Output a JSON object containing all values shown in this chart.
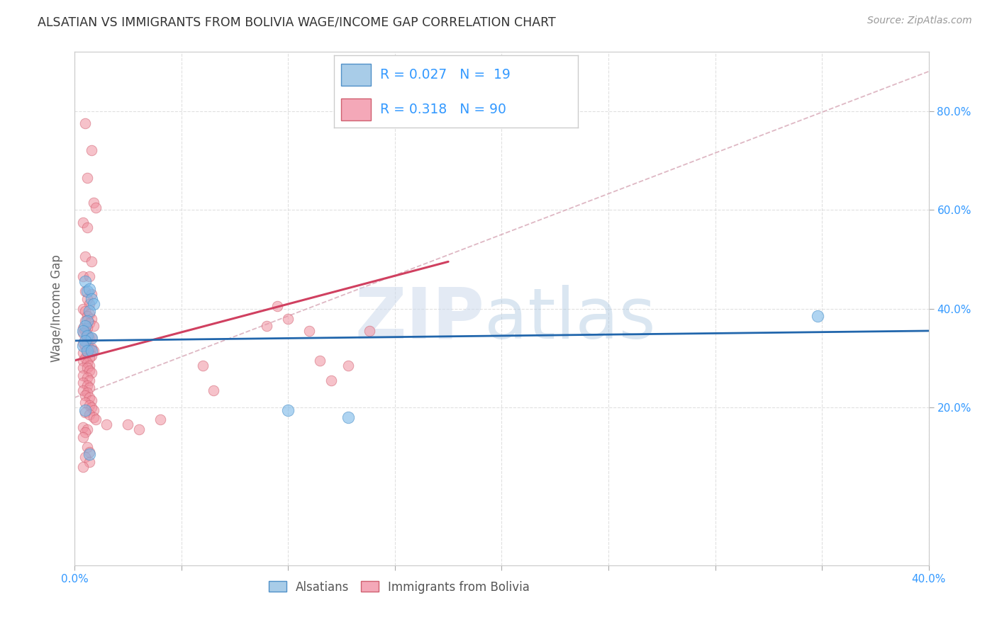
{
  "title": "ALSATIAN VS IMMIGRANTS FROM BOLIVIA WAGE/INCOME GAP CORRELATION CHART",
  "source": "Source: ZipAtlas.com",
  "ylabel": "Wage/Income Gap",
  "xlim": [
    0.0,
    0.4
  ],
  "ylim": [
    -0.12,
    0.92
  ],
  "x_tick_positions": [
    0.0,
    0.05,
    0.1,
    0.15,
    0.2,
    0.25,
    0.3,
    0.35,
    0.4
  ],
  "x_tick_labels": [
    "0.0%",
    "",
    "",
    "",
    "",
    "",
    "",
    "",
    "40.0%"
  ],
  "y_tick_positions": [
    0.2,
    0.4,
    0.6,
    0.8
  ],
  "y_tick_labels": [
    "20.0%",
    "40.0%",
    "60.0%",
    "80.0%"
  ],
  "background_color": "#ffffff",
  "grid_color": "#dddddd",
  "alsatian_color": "#7ab8e8",
  "alsatian_edge": "#4a90c8",
  "bolivia_color": "#f090a0",
  "bolivia_edge": "#d06070",
  "alsatian_line_color": "#2166ac",
  "bolivia_line_color": "#d04060",
  "diagonal_color": "#d4a0b0",
  "alsatian_line": [
    0.0,
    0.4,
    0.335,
    0.355
  ],
  "bolivia_line": [
    0.0,
    0.175,
    0.295,
    0.495
  ],
  "diagonal_line": [
    0.0,
    0.4,
    0.22,
    0.88
  ],
  "alsatian_points": [
    [
      0.005,
      0.455
    ],
    [
      0.006,
      0.435
    ],
    [
      0.007,
      0.44
    ],
    [
      0.008,
      0.42
    ],
    [
      0.009,
      0.41
    ],
    [
      0.007,
      0.395
    ],
    [
      0.006,
      0.375
    ],
    [
      0.005,
      0.365
    ],
    [
      0.004,
      0.355
    ],
    [
      0.006,
      0.345
    ],
    [
      0.008,
      0.34
    ],
    [
      0.005,
      0.335
    ],
    [
      0.004,
      0.325
    ],
    [
      0.006,
      0.315
    ],
    [
      0.008,
      0.315
    ],
    [
      0.005,
      0.195
    ],
    [
      0.007,
      0.105
    ],
    [
      0.1,
      0.195
    ],
    [
      0.128,
      0.18
    ],
    [
      0.348,
      0.385
    ]
  ],
  "bolivia_points": [
    [
      0.005,
      0.775
    ],
    [
      0.008,
      0.72
    ],
    [
      0.006,
      0.665
    ],
    [
      0.009,
      0.615
    ],
    [
      0.01,
      0.605
    ],
    [
      0.004,
      0.575
    ],
    [
      0.006,
      0.565
    ],
    [
      0.005,
      0.505
    ],
    [
      0.008,
      0.495
    ],
    [
      0.004,
      0.465
    ],
    [
      0.007,
      0.465
    ],
    [
      0.005,
      0.435
    ],
    [
      0.008,
      0.43
    ],
    [
      0.006,
      0.42
    ],
    [
      0.007,
      0.41
    ],
    [
      0.004,
      0.4
    ],
    [
      0.005,
      0.395
    ],
    [
      0.007,
      0.39
    ],
    [
      0.006,
      0.385
    ],
    [
      0.008,
      0.38
    ],
    [
      0.005,
      0.375
    ],
    [
      0.007,
      0.37
    ],
    [
      0.009,
      0.365
    ],
    [
      0.004,
      0.36
    ],
    [
      0.006,
      0.36
    ],
    [
      0.005,
      0.355
    ],
    [
      0.004,
      0.35
    ],
    [
      0.006,
      0.345
    ],
    [
      0.007,
      0.34
    ],
    [
      0.008,
      0.34
    ],
    [
      0.004,
      0.33
    ],
    [
      0.006,
      0.33
    ],
    [
      0.005,
      0.325
    ],
    [
      0.007,
      0.32
    ],
    [
      0.008,
      0.32
    ],
    [
      0.009,
      0.315
    ],
    [
      0.004,
      0.31
    ],
    [
      0.006,
      0.31
    ],
    [
      0.008,
      0.305
    ],
    [
      0.005,
      0.3
    ],
    [
      0.007,
      0.3
    ],
    [
      0.004,
      0.295
    ],
    [
      0.006,
      0.29
    ],
    [
      0.007,
      0.285
    ],
    [
      0.004,
      0.28
    ],
    [
      0.006,
      0.28
    ],
    [
      0.007,
      0.275
    ],
    [
      0.008,
      0.27
    ],
    [
      0.004,
      0.265
    ],
    [
      0.006,
      0.26
    ],
    [
      0.007,
      0.255
    ],
    [
      0.004,
      0.25
    ],
    [
      0.006,
      0.245
    ],
    [
      0.007,
      0.24
    ],
    [
      0.004,
      0.235
    ],
    [
      0.006,
      0.23
    ],
    [
      0.005,
      0.225
    ],
    [
      0.007,
      0.22
    ],
    [
      0.008,
      0.215
    ],
    [
      0.005,
      0.21
    ],
    [
      0.007,
      0.205
    ],
    [
      0.008,
      0.2
    ],
    [
      0.009,
      0.195
    ],
    [
      0.005,
      0.19
    ],
    [
      0.007,
      0.185
    ],
    [
      0.009,
      0.18
    ],
    [
      0.01,
      0.175
    ],
    [
      0.015,
      0.165
    ],
    [
      0.004,
      0.16
    ],
    [
      0.006,
      0.155
    ],
    [
      0.005,
      0.15
    ],
    [
      0.004,
      0.14
    ],
    [
      0.006,
      0.12
    ],
    [
      0.007,
      0.11
    ],
    [
      0.005,
      0.1
    ],
    [
      0.007,
      0.09
    ],
    [
      0.004,
      0.08
    ],
    [
      0.06,
      0.285
    ],
    [
      0.065,
      0.235
    ],
    [
      0.09,
      0.365
    ],
    [
      0.095,
      0.405
    ],
    [
      0.1,
      0.38
    ],
    [
      0.11,
      0.355
    ],
    [
      0.115,
      0.295
    ],
    [
      0.12,
      0.255
    ],
    [
      0.128,
      0.285
    ],
    [
      0.138,
      0.355
    ],
    [
      0.025,
      0.165
    ],
    [
      0.03,
      0.155
    ],
    [
      0.04,
      0.175
    ]
  ]
}
